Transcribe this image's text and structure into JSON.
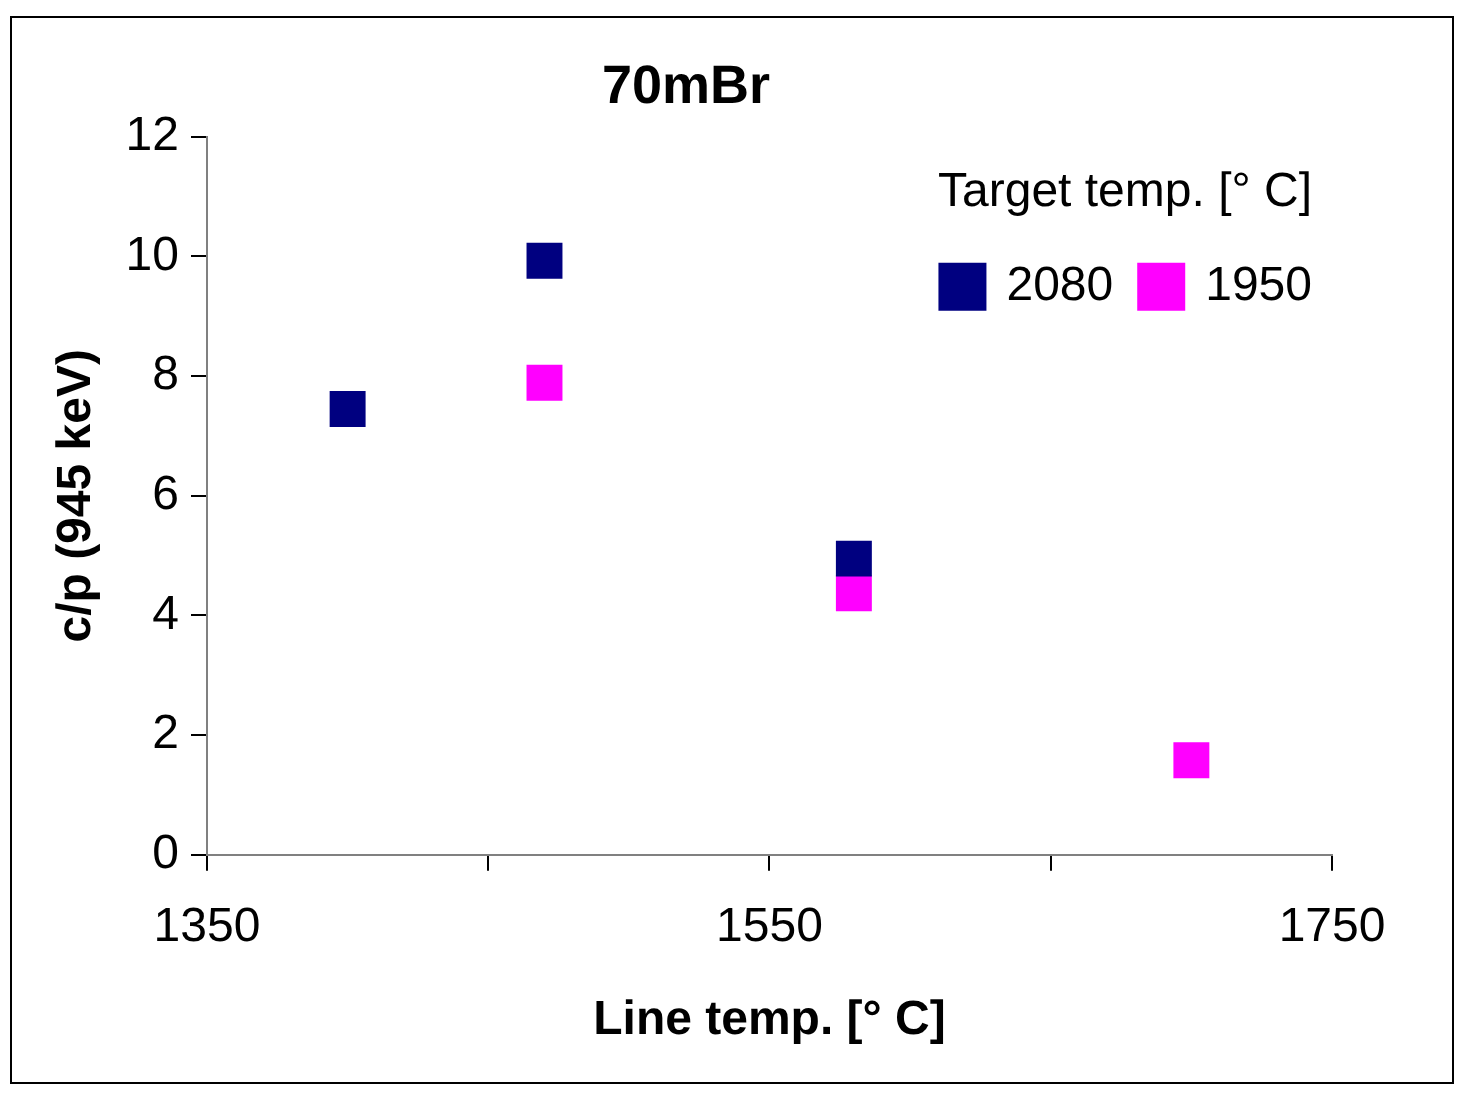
{
  "chart_data": {
    "type": "scatter",
    "title": "70mBr",
    "xlabel": "Line temp. [° C]",
    "ylabel": "c/p (945 keV)",
    "legend_title": "Target temp. [° C]",
    "legend": "top right",
    "marker": "square",
    "grid": false,
    "xlim": [
      1350,
      1750
    ],
    "xticks": [
      1350,
      {
        "value": 1450,
        "label": null
      },
      1550,
      {
        "value": 1650,
        "label": null
      },
      1750
    ],
    "ylim": [
      0,
      12
    ],
    "yticks": [
      0,
      2,
      4,
      6,
      8,
      10,
      12
    ],
    "series": [
      {
        "name": "2080",
        "color": "#000080",
        "x": [
          1400,
          1470,
          1580
        ],
        "values": [
          7.45,
          9.93,
          4.95
        ]
      },
      {
        "name": "1950",
        "color": "#ff00ff",
        "x": [
          1470,
          1580,
          1700
        ],
        "values": [
          7.89,
          4.37,
          1.58
        ]
      }
    ]
  }
}
